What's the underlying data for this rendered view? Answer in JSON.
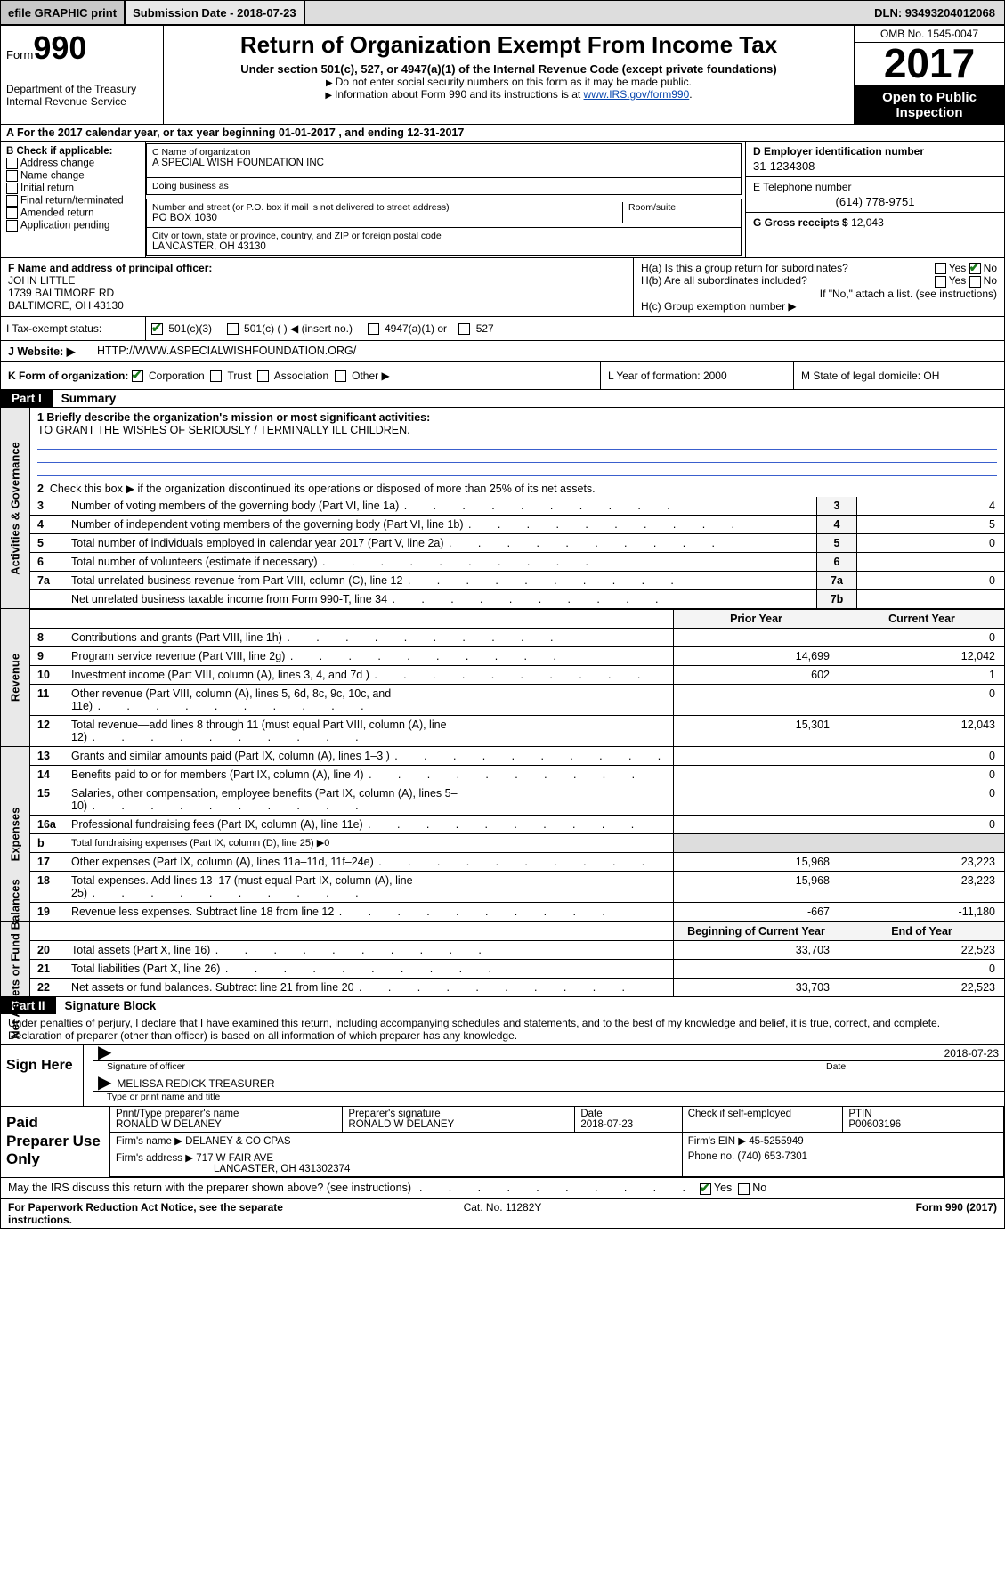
{
  "topbar": {
    "efile": "efile GRAPHIC print",
    "submission_label": "Submission Date - 2018-07-23",
    "dln": "DLN: 93493204012068"
  },
  "header": {
    "form_label": "Form",
    "form_no": "990",
    "dept": "Department of the Treasury\nInternal Revenue Service",
    "title": "Return of Organization Exempt From Income Tax",
    "subtitle": "Under section 501(c), 527, or 4947(a)(1) of the Internal Revenue Code (except private foundations)",
    "note1": "Do not enter social security numbers on this form as it may be made public.",
    "note2_pre": "Information about Form 990 and its instructions is at ",
    "note2_link": "www.IRS.gov/form990",
    "omb": "OMB No. 1545-0047",
    "year": "2017",
    "open_public": "Open to Public Inspection"
  },
  "row_a": "A For the 2017 calendar year, or tax year beginning 01-01-2017   , and ending 12-31-2017",
  "box_b": {
    "title": "B Check if applicable:",
    "items": [
      "Address change",
      "Name change",
      "Initial return",
      "Final return/terminated",
      "Amended return",
      "Application pending"
    ]
  },
  "box_c": {
    "name_lbl": "C Name of organization",
    "name": "A SPECIAL WISH FOUNDATION INC",
    "dba_lbl": "Doing business as",
    "dba": "",
    "street_lbl": "Number and street (or P.O. box if mail is not delivered to street address)",
    "street": "PO BOX 1030",
    "room_lbl": "Room/suite",
    "city_lbl": "City or town, state or province, country, and ZIP or foreign postal code",
    "city": "LANCASTER, OH  43130"
  },
  "box_d": {
    "lbl": "D Employer identification number",
    "val": "31-1234308",
    "tel_lbl": "E Telephone number",
    "tel": "(614) 778-9751",
    "gross_lbl": "G Gross receipts $",
    "gross": "12,043"
  },
  "box_f": {
    "lbl": "F  Name and address of principal officer:",
    "name": "JOHN LITTLE",
    "addr1": "1739 BALTIMORE RD",
    "addr2": "BALTIMORE, OH  43130"
  },
  "box_h": {
    "a_lbl": "H(a)  Is this a group return for subordinates?",
    "a_yes": "Yes",
    "a_no": "No",
    "b_lbl": "H(b)  Are all subordinates included?",
    "b_yes": "Yes",
    "b_no": "No",
    "b_note": "If \"No,\" attach a list. (see instructions)",
    "c_lbl": "H(c)  Group exemption number ▶"
  },
  "tax_status": {
    "lbl": "I   Tax-exempt status:",
    "o1": "501(c)(3)",
    "o2": "501(c) (   ) ◀ (insert no.)",
    "o3": "4947(a)(1) or",
    "o4": "527"
  },
  "website": {
    "lbl": "J   Website: ▶",
    "val": "HTTP://WWW.ASPECIALWISHFOUNDATION.ORG/"
  },
  "row_k": {
    "k_lbl": "K Form of organization:",
    "opts": [
      "Corporation",
      "Trust",
      "Association",
      "Other ▶"
    ],
    "l": "L Year of formation: 2000",
    "m": "M State of legal domicile: OH"
  },
  "part1": {
    "tab": "Part I",
    "title": "Summary",
    "q1_lbl": "1   Briefly describe the organization's mission or most significant activities:",
    "q1_val": "TO GRANT THE WISHES OF SERIOUSLY / TERMINALLY ILL CHILDREN.",
    "q2": "Check this box ▶        if the organization discontinued its operations or disposed of more than 25% of its net assets.",
    "lines_gov": [
      {
        "n": "3",
        "d": "Number of voting members of the governing body (Part VI, line 1a)",
        "box": "3",
        "v": "4"
      },
      {
        "n": "4",
        "d": "Number of independent voting members of the governing body (Part VI, line 1b)",
        "box": "4",
        "v": "5"
      },
      {
        "n": "5",
        "d": "Total number of individuals employed in calendar year 2017 (Part V, line 2a)",
        "box": "5",
        "v": "0"
      },
      {
        "n": "6",
        "d": "Total number of volunteers (estimate if necessary)",
        "box": "6",
        "v": ""
      },
      {
        "n": "7a",
        "d": "Total unrelated business revenue from Part VIII, column (C), line 12",
        "box": "7a",
        "v": "0"
      },
      {
        "n": "",
        "d": "Net unrelated business taxable income from Form 990-T, line 34",
        "box": "7b",
        "v": ""
      }
    ],
    "col_hdr_prior": "Prior Year",
    "col_hdr_curr": "Current Year",
    "lines_rev": [
      {
        "n": "8",
        "d": "Contributions and grants (Part VIII, line 1h)",
        "p": "",
        "c": "0"
      },
      {
        "n": "9",
        "d": "Program service revenue (Part VIII, line 2g)",
        "p": "14,699",
        "c": "12,042"
      },
      {
        "n": "10",
        "d": "Investment income (Part VIII, column (A), lines 3, 4, and 7d )",
        "p": "602",
        "c": "1"
      },
      {
        "n": "11",
        "d": "Other revenue (Part VIII, column (A), lines 5, 6d, 8c, 9c, 10c, and 11e)",
        "p": "",
        "c": "0"
      },
      {
        "n": "12",
        "d": "Total revenue—add lines 8 through 11 (must equal Part VIII, column (A), line 12)",
        "p": "15,301",
        "c": "12,043"
      }
    ],
    "lines_exp": [
      {
        "n": "13",
        "d": "Grants and similar amounts paid (Part IX, column (A), lines 1–3 )",
        "p": "",
        "c": "0"
      },
      {
        "n": "14",
        "d": "Benefits paid to or for members (Part IX, column (A), line 4)",
        "p": "",
        "c": "0"
      },
      {
        "n": "15",
        "d": "Salaries, other compensation, employee benefits (Part IX, column (A), lines 5–10)",
        "p": "",
        "c": "0"
      },
      {
        "n": "16a",
        "d": "Professional fundraising fees (Part IX, column (A), line 11e)",
        "p": "",
        "c": "0"
      },
      {
        "n": "b",
        "d": "Total fundraising expenses (Part IX, column (D), line 25) ▶0",
        "p": "—",
        "c": "—"
      },
      {
        "n": "17",
        "d": "Other expenses (Part IX, column (A), lines 11a–11d, 11f–24e)",
        "p": "15,968",
        "c": "23,223"
      },
      {
        "n": "18",
        "d": "Total expenses. Add lines 13–17 (must equal Part IX, column (A), line 25)",
        "p": "15,968",
        "c": "23,223"
      },
      {
        "n": "19",
        "d": "Revenue less expenses. Subtract line 18 from line 12",
        "p": "-667",
        "c": "-11,180"
      }
    ],
    "col_hdr_beg": "Beginning of Current Year",
    "col_hdr_end": "End of Year",
    "lines_net": [
      {
        "n": "20",
        "d": "Total assets (Part X, line 16)",
        "p": "33,703",
        "c": "22,523"
      },
      {
        "n": "21",
        "d": "Total liabilities (Part X, line 26)",
        "p": "",
        "c": "0"
      },
      {
        "n": "22",
        "d": "Net assets or fund balances. Subtract line 21 from line 20",
        "p": "33,703",
        "c": "22,523"
      }
    ],
    "vtab_gov": "Activities & Governance",
    "vtab_rev": "Revenue",
    "vtab_exp": "Expenses",
    "vtab_net": "Net Assets or Fund Balances"
  },
  "part2": {
    "tab": "Part II",
    "title": "Signature Block",
    "decl": "Under penalties of perjury, I declare that I have examined this return, including accompanying schedules and statements, and to the best of my knowledge and belief, it is true, correct, and complete. Declaration of preparer (other than officer) is based on all information of which preparer has any knowledge.",
    "sign_here": "Sign Here",
    "sig_officer_lbl": "Signature of officer",
    "sig_date": "2018-07-23",
    "sig_date_lbl": "Date",
    "officer_name": "MELISSA REDICK  TREASURER",
    "officer_name_lbl": "Type or print name and title",
    "paid_lbl": "Paid Preparer Use Only",
    "prep_name_lbl": "Print/Type preparer's name",
    "prep_name": "RONALD W DELANEY",
    "prep_sig_lbl": "Preparer's signature",
    "prep_sig": "RONALD W DELANEY",
    "prep_date_lbl": "Date",
    "prep_date": "2018-07-23",
    "self_emp": "Check        if self-employed",
    "ptin_lbl": "PTIN",
    "ptin": "P00603196",
    "firm_name_lbl": "Firm's name    ▶",
    "firm_name": "DELANEY & CO CPAS",
    "firm_ein_lbl": "Firm's EIN ▶",
    "firm_ein": "45-5255949",
    "firm_addr_lbl": "Firm's address ▶",
    "firm_addr": "717 W FAIR AVE",
    "firm_city": "LANCASTER, OH  431302374",
    "firm_phone_lbl": "Phone no.",
    "firm_phone": "(740) 653-7301",
    "irs_discuss": "May the IRS discuss this return with the preparer shown above? (see instructions)",
    "yes": "Yes",
    "no": "No"
  },
  "footer": {
    "left": "For Paperwork Reduction Act Notice, see the separate instructions.",
    "mid": "Cat. No. 11282Y",
    "right": "Form 990 (2017)"
  }
}
